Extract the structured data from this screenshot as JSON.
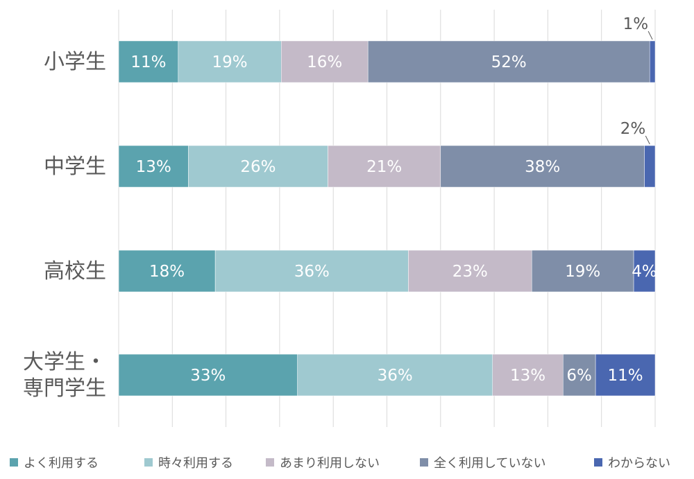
{
  "chart_data": {
    "type": "bar",
    "orientation": "horizontal",
    "stacked": "percent",
    "categories": [
      "小学生",
      "中学生",
      "高校生",
      "大学生・専門学生"
    ],
    "category_label_lines": [
      [
        "小学生"
      ],
      [
        "中学生"
      ],
      [
        "高校生"
      ],
      [
        "大学生・",
        "専門学生"
      ]
    ],
    "xlim": [
      0,
      100
    ],
    "grid": true,
    "legend_position": "bottom",
    "series": [
      {
        "name": "よく利用する",
        "color": "#5ba3ae",
        "values": [
          11,
          13,
          18,
          33
        ],
        "labels": [
          "11%",
          "13%",
          "18%",
          "33%"
        ]
      },
      {
        "name": "時々利用する",
        "color": "#9fc9d0",
        "values": [
          19,
          26,
          36,
          36
        ],
        "labels": [
          "19%",
          "26%",
          "36%",
          "36%"
        ]
      },
      {
        "name": "あまり利用しない",
        "color": "#c4bac8",
        "values": [
          16,
          21,
          23,
          13
        ],
        "labels": [
          "16%",
          "21%",
          "23%",
          "13%"
        ]
      },
      {
        "name": "全く利用していない",
        "color": "#7f8ea8",
        "values": [
          52,
          38,
          19,
          6
        ],
        "labels": [
          "52%",
          "38%",
          "19%",
          "6%"
        ]
      },
      {
        "name": "わからない",
        "color": "#4a67b0",
        "values": [
          1,
          2,
          4,
          11
        ],
        "labels": [
          "1%",
          "2%",
          "4%",
          "11%"
        ]
      }
    ],
    "inside_label_color": "#ffffff",
    "outside_label_color": "#595959"
  }
}
